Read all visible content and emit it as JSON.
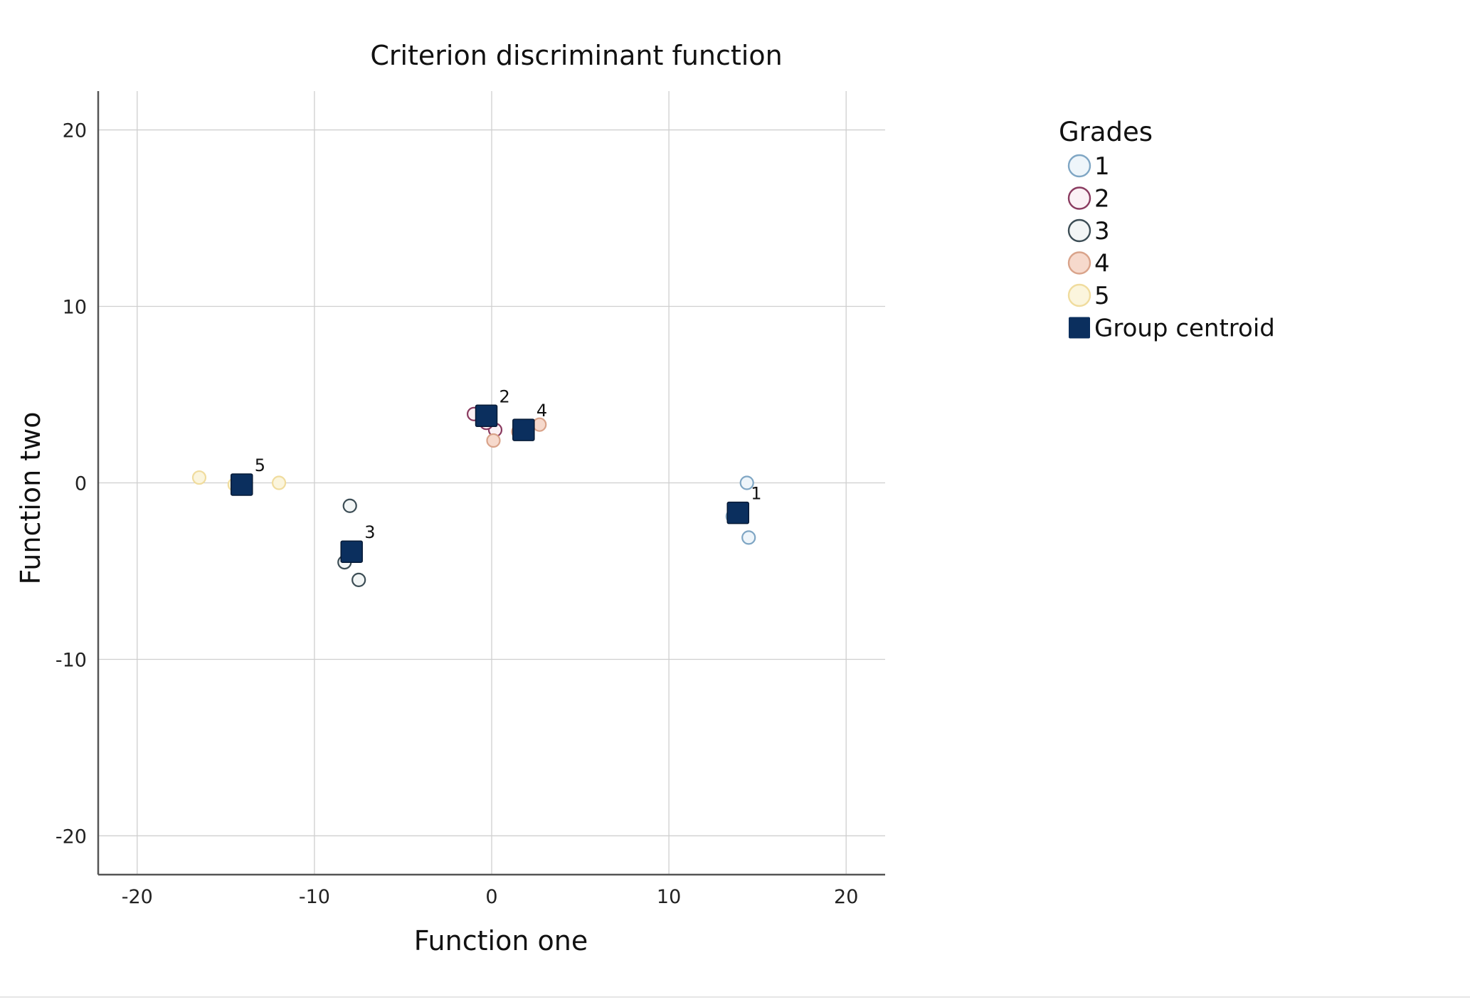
{
  "chart_data": {
    "type": "scatter",
    "title": "Criterion discriminant function",
    "xlabel": "Function one",
    "ylabel": "Function two",
    "xlim": [
      -22.2,
      22.2
    ],
    "ylim": [
      -22.2,
      22.2
    ],
    "xticks": [
      -20,
      -10,
      0,
      10,
      20
    ],
    "yticks": [
      -20,
      -10,
      0,
      10,
      20
    ],
    "grid": true,
    "legend": {
      "title": "Grades",
      "placement": "right"
    },
    "series": [
      {
        "name": "1",
        "marker": "open-circle",
        "color": "#7fa6c4",
        "fill": "#eef5fa",
        "points": [
          [
            14.4,
            0.0
          ],
          [
            13.6,
            -1.9
          ],
          [
            14.5,
            -3.1
          ]
        ]
      },
      {
        "name": "2",
        "marker": "open-circle",
        "color": "#8a3b60",
        "fill": "#fbf1f5",
        "points": [
          [
            -1.0,
            3.9
          ],
          [
            0.2,
            3.0
          ],
          [
            -0.3,
            3.4
          ]
        ]
      },
      {
        "name": "3",
        "marker": "open-circle",
        "color": "#3c4d55",
        "fill": "#f3f6f6",
        "points": [
          [
            -8.0,
            -1.3
          ],
          [
            -8.3,
            -4.5
          ],
          [
            -7.5,
            -5.5
          ]
        ]
      },
      {
        "name": "4",
        "marker": "open-circle",
        "color": "#d9a38a",
        "fill": "#f6d9cc",
        "points": [
          [
            0.1,
            2.4
          ],
          [
            2.7,
            3.3
          ],
          [
            1.5,
            2.9
          ]
        ]
      },
      {
        "name": "5",
        "marker": "open-circle",
        "color": "#f0dc9e",
        "fill": "#fbf5dd",
        "points": [
          [
            -16.5,
            0.3
          ],
          [
            -12.0,
            0.0
          ],
          [
            -14.5,
            -0.1
          ]
        ]
      }
    ],
    "centroids": {
      "name": "Group centroid",
      "marker": "filled-square",
      "color": "#0b2f5e",
      "points": [
        {
          "label": "5",
          "x": -14.1,
          "y": -0.1
        },
        {
          "label": "3",
          "x": -7.9,
          "y": -3.9
        },
        {
          "label": "2",
          "x": -0.3,
          "y": 3.8
        },
        {
          "label": "4",
          "x": 1.8,
          "y": 3.0
        },
        {
          "label": "1",
          "x": 13.9,
          "y": -1.7
        }
      ]
    }
  }
}
